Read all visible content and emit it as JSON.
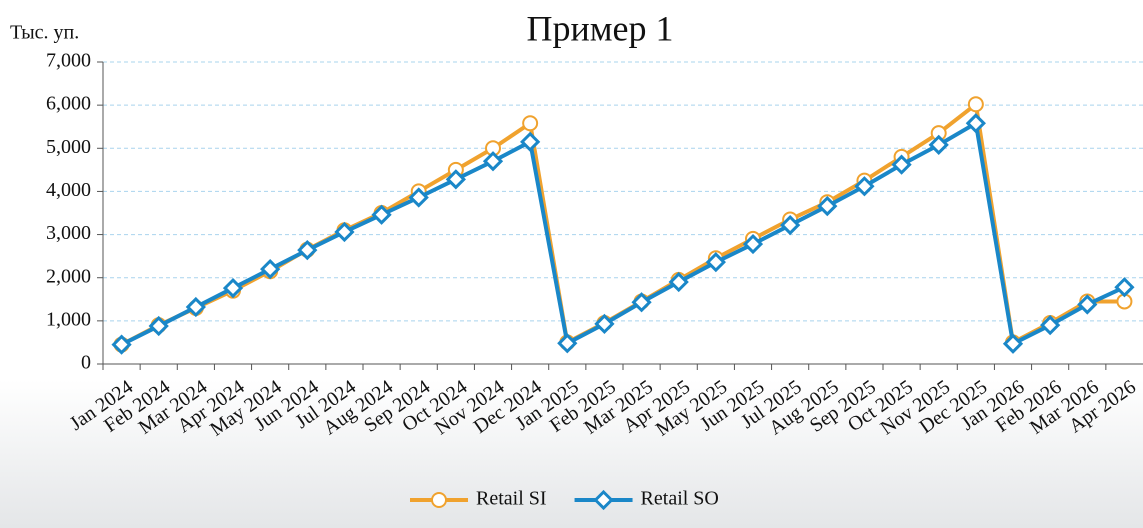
{
  "chart_data": {
    "type": "line",
    "title": "Пример 1",
    "y_label": "Тыс. уп.",
    "categories": [
      "Jan 2024",
      "Feb 2024",
      "Mar 2024",
      "Apr 2024",
      "May 2024",
      "Jun 2024",
      "Jul 2024",
      "Aug 2024",
      "Sep 2024",
      "Oct 2024",
      "Nov 2024",
      "Dec 2024",
      "Jan 2025",
      "Feb 2025",
      "Mar 2025",
      "Apr 2025",
      "May 2025",
      "Jun 2025",
      "Jul 2025",
      "Aug 2025",
      "Sep 2025",
      "Oct 2025",
      "Nov 2025",
      "Dec 2025",
      "Jan 2026",
      "Feb 2026",
      "Mar 2026",
      "Apr 2026"
    ],
    "series": [
      {
        "name": "Retail SI",
        "color": "#f0a22e",
        "marker": "circle",
        "values": [
          450,
          900,
          1300,
          1700,
          2150,
          2650,
          3100,
          3500,
          4000,
          4500,
          5000,
          5580,
          500,
          950,
          1450,
          1950,
          2450,
          2900,
          3350,
          3750,
          4250,
          4800,
          5350,
          6020,
          500,
          950,
          1450,
          1450
        ]
      },
      {
        "name": "Retail SO",
        "color": "#1a87c8",
        "marker": "diamond",
        "values": [
          450,
          880,
          1320,
          1760,
          2200,
          2640,
          3060,
          3460,
          3860,
          4280,
          4700,
          5150,
          480,
          930,
          1430,
          1900,
          2360,
          2780,
          3220,
          3660,
          4120,
          4620,
          5080,
          5580,
          470,
          900,
          1380,
          1780
        ]
      }
    ],
    "ylim": [
      0,
      7000
    ],
    "yticks": [
      0,
      {
        "value": 1000,
        "label": "1,000"
      },
      {
        "value": 2000,
        "label": "2,000"
      },
      {
        "value": 3000,
        "label": "3,000"
      },
      {
        "value": 4000,
        "label": "4,000"
      },
      {
        "value": 5000,
        "label": "5,000"
      },
      {
        "value": 6000,
        "label": "6,000"
      },
      {
        "value": 7000,
        "label": "7,000"
      }
    ],
    "grid": true,
    "legend": "bottom"
  }
}
